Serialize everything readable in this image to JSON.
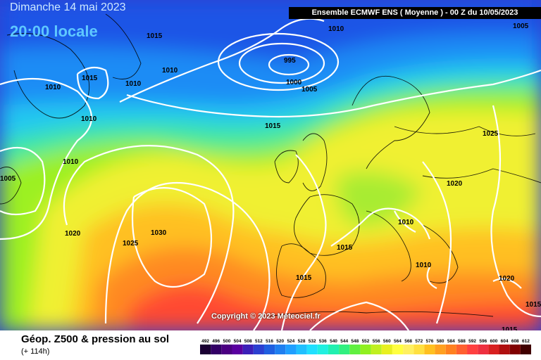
{
  "header": {
    "date": "Dimanche 14 mai 2023",
    "time": "20:00 locale",
    "model": "Ensemble ECMWF ENS  ( Moyenne )  -  00 Z du 10/05/2023"
  },
  "copyright": "Copyright © 2023 Meteociel.fr",
  "footer": {
    "title": "Géop. Z500 & pression au sol",
    "subtitle": "(+ 114h)"
  },
  "scale": {
    "ticks": [
      "492",
      "496",
      "500",
      "504",
      "508",
      "512",
      "516",
      "520",
      "524",
      "528",
      "532",
      "536",
      "540",
      "544",
      "548",
      "552",
      "556",
      "560",
      "564",
      "568",
      "572",
      "576",
      "580",
      "584",
      "588",
      "592",
      "596",
      "600",
      "604",
      "608",
      "612"
    ],
    "colors": [
      "#1a0033",
      "#330066",
      "#4b0082",
      "#5a00a0",
      "#3b1fb8",
      "#2b3fd0",
      "#1f5fe0",
      "#1f7ff0",
      "#1f9fff",
      "#20c0ff",
      "#20e0ff",
      "#20f0e0",
      "#20f0b0",
      "#30f080",
      "#60f040",
      "#90f020",
      "#c0f020",
      "#e8f020",
      "#ffff40",
      "#fff060",
      "#ffe040",
      "#ffc020",
      "#ffa020",
      "#ff8020",
      "#ff6030",
      "#ff4040",
      "#ee3040",
      "#d82020",
      "#b01010",
      "#800000",
      "#400000"
    ]
  },
  "isobars": [
    {
      "text": "1015"
    },
    {
      "text": "1010"
    },
    {
      "text": "995"
    },
    {
      "text": "1000"
    },
    {
      "text": "1005"
    },
    {
      "text": "1005"
    },
    {
      "text": "1015"
    },
    {
      "text": "1010"
    },
    {
      "text": "1010"
    },
    {
      "text": "1010"
    },
    {
      "text": "1005"
    },
    {
      "text": "1010"
    },
    {
      "text": "1015"
    },
    {
      "text": "1025"
    },
    {
      "text": "1020"
    },
    {
      "text": "1030"
    },
    {
      "text": "1025"
    },
    {
      "text": "1020"
    },
    {
      "text": "1010"
    },
    {
      "text": "1015"
    },
    {
      "text": "1010"
    },
    {
      "text": "1015"
    },
    {
      "text": "1010"
    },
    {
      "text": "1020"
    },
    {
      "text": "1015"
    },
    {
      "text": "1015"
    }
  ]
}
